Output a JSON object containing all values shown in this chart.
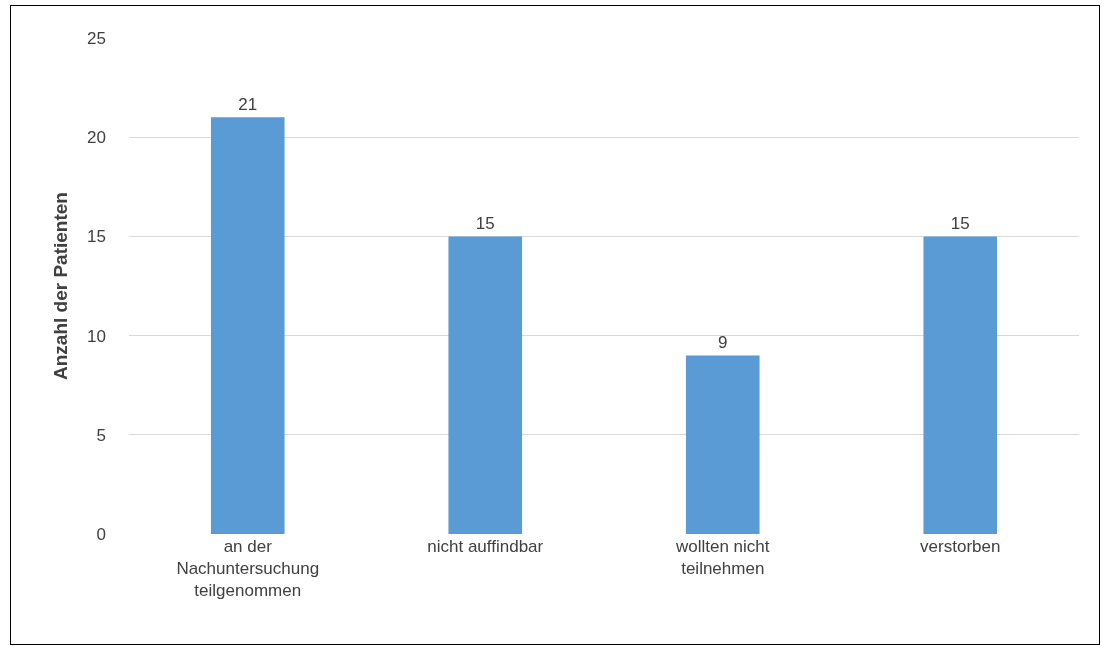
{
  "chart_data": {
    "type": "bar",
    "ylabel": "Anzahl der Patienten",
    "categories": [
      "an der Nachuntersuchung teilgenommen",
      "nicht auffindbar",
      "wollten nicht teilnehmen",
      "verstorben"
    ],
    "values": [
      21,
      15,
      9,
      15
    ],
    "color": "#5b9bd5",
    "ylim": [
      0,
      25
    ],
    "yticks": [
      0,
      5,
      10,
      15,
      20,
      25
    ],
    "grid": "y",
    "data_labels": true
  }
}
